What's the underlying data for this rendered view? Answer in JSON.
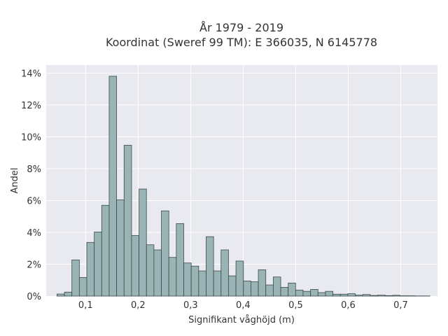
{
  "chart_data": {
    "type": "bar",
    "title": "År 1979 - 2019",
    "subtitle": "Koordinat (Sweref 99 TM): E 366035, N 6145778",
    "xlabel": "Signifikant våghöjd (m)",
    "ylabel": "Andel",
    "xlim": [
      0.025,
      0.77
    ],
    "ylim": [
      0,
      14.5
    ],
    "x_ticks": [
      0.1,
      0.2,
      0.3,
      0.4,
      0.5,
      0.6,
      0.7
    ],
    "x_tick_labels": [
      "0,1",
      "0,2",
      "0,3",
      "0,4",
      "0,5",
      "0,6",
      "0,7"
    ],
    "y_ticks": [
      0,
      2,
      4,
      6,
      8,
      10,
      12,
      14
    ],
    "y_tick_labels": [
      "0%",
      "2%",
      "4%",
      "6%",
      "8%",
      "10%",
      "12%",
      "14%"
    ],
    "bin_width": 0.0142,
    "bin_start": 0.0455,
    "values": [
      0.13,
      0.25,
      2.27,
      1.17,
      3.37,
      4.02,
      5.7,
      13.8,
      6.04,
      9.47,
      3.8,
      6.72,
      3.22,
      2.9,
      5.35,
      2.43,
      4.55,
      2.08,
      1.88,
      1.58,
      3.73,
      1.58,
      2.9,
      1.27,
      2.2,
      0.95,
      0.9,
      1.65,
      0.7,
      1.2,
      0.55,
      0.82,
      0.38,
      0.3,
      0.42,
      0.22,
      0.3,
      0.12,
      0.12,
      0.15,
      0.06,
      0.1,
      0.04,
      0.06,
      0.03,
      0.05,
      0.02,
      0.02,
      0.01,
      0.01
    ],
    "grid": true,
    "legend": "none",
    "colors": {
      "plot_background": "#e9e9f0",
      "bar_fill": "#9ab3b4",
      "bar_edge": "#3b4a4a",
      "grid": "#ffffff"
    }
  }
}
